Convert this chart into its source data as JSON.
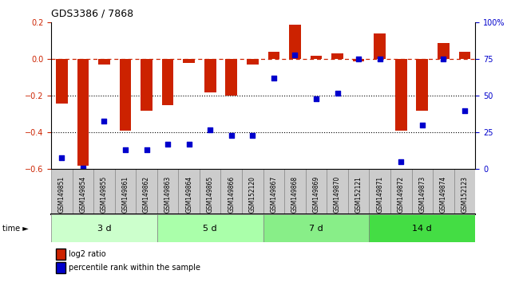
{
  "title": "GDS3386 / 7868",
  "samples": [
    "GSM149851",
    "GSM149854",
    "GSM149855",
    "GSM149861",
    "GSM149862",
    "GSM149863",
    "GSM149864",
    "GSM149865",
    "GSM149866",
    "GSM152120",
    "GSM149867",
    "GSM149868",
    "GSM149869",
    "GSM149870",
    "GSM152121",
    "GSM149871",
    "GSM149872",
    "GSM149873",
    "GSM149874",
    "GSM152123"
  ],
  "log2_ratio": [
    -0.24,
    -0.58,
    -0.03,
    -0.39,
    -0.28,
    -0.25,
    -0.02,
    -0.18,
    -0.2,
    -0.03,
    0.04,
    0.19,
    0.02,
    0.03,
    -0.01,
    0.14,
    -0.39,
    -0.28,
    0.09,
    0.04
  ],
  "percentile": [
    8,
    1,
    33,
    13,
    13,
    17,
    17,
    27,
    23,
    23,
    62,
    78,
    48,
    52,
    75,
    75,
    5,
    30,
    75,
    40
  ],
  "groups": [
    {
      "label": "3 d",
      "start": 0,
      "end": 5,
      "color": "#ccffcc"
    },
    {
      "label": "5 d",
      "start": 5,
      "end": 10,
      "color": "#aaffaa"
    },
    {
      "label": "7 d",
      "start": 10,
      "end": 15,
      "color": "#88ee88"
    },
    {
      "label": "14 d",
      "start": 15,
      "end": 20,
      "color": "#44dd44"
    }
  ],
  "bar_color": "#cc2200",
  "dot_color": "#0000cc",
  "ylim_left": [
    -0.6,
    0.2
  ],
  "ylim_right": [
    0,
    100
  ],
  "yticks_left": [
    -0.6,
    -0.4,
    -0.2,
    0.0,
    0.2
  ],
  "yticks_right": [
    0,
    25,
    50,
    75,
    100
  ],
  "ytick_labels_right": [
    "0",
    "25",
    "50",
    "75",
    "100%"
  ],
  "hline_dashed": 0.0,
  "hline_dotted1": -0.2,
  "hline_dotted2": -0.4,
  "legend_red": "log2 ratio",
  "legend_blue": "percentile rank within the sample",
  "bg_color": "#ffffff",
  "plot_bg": "#ffffff",
  "sample_box_color": "#cccccc",
  "sample_box_edge": "#888888"
}
